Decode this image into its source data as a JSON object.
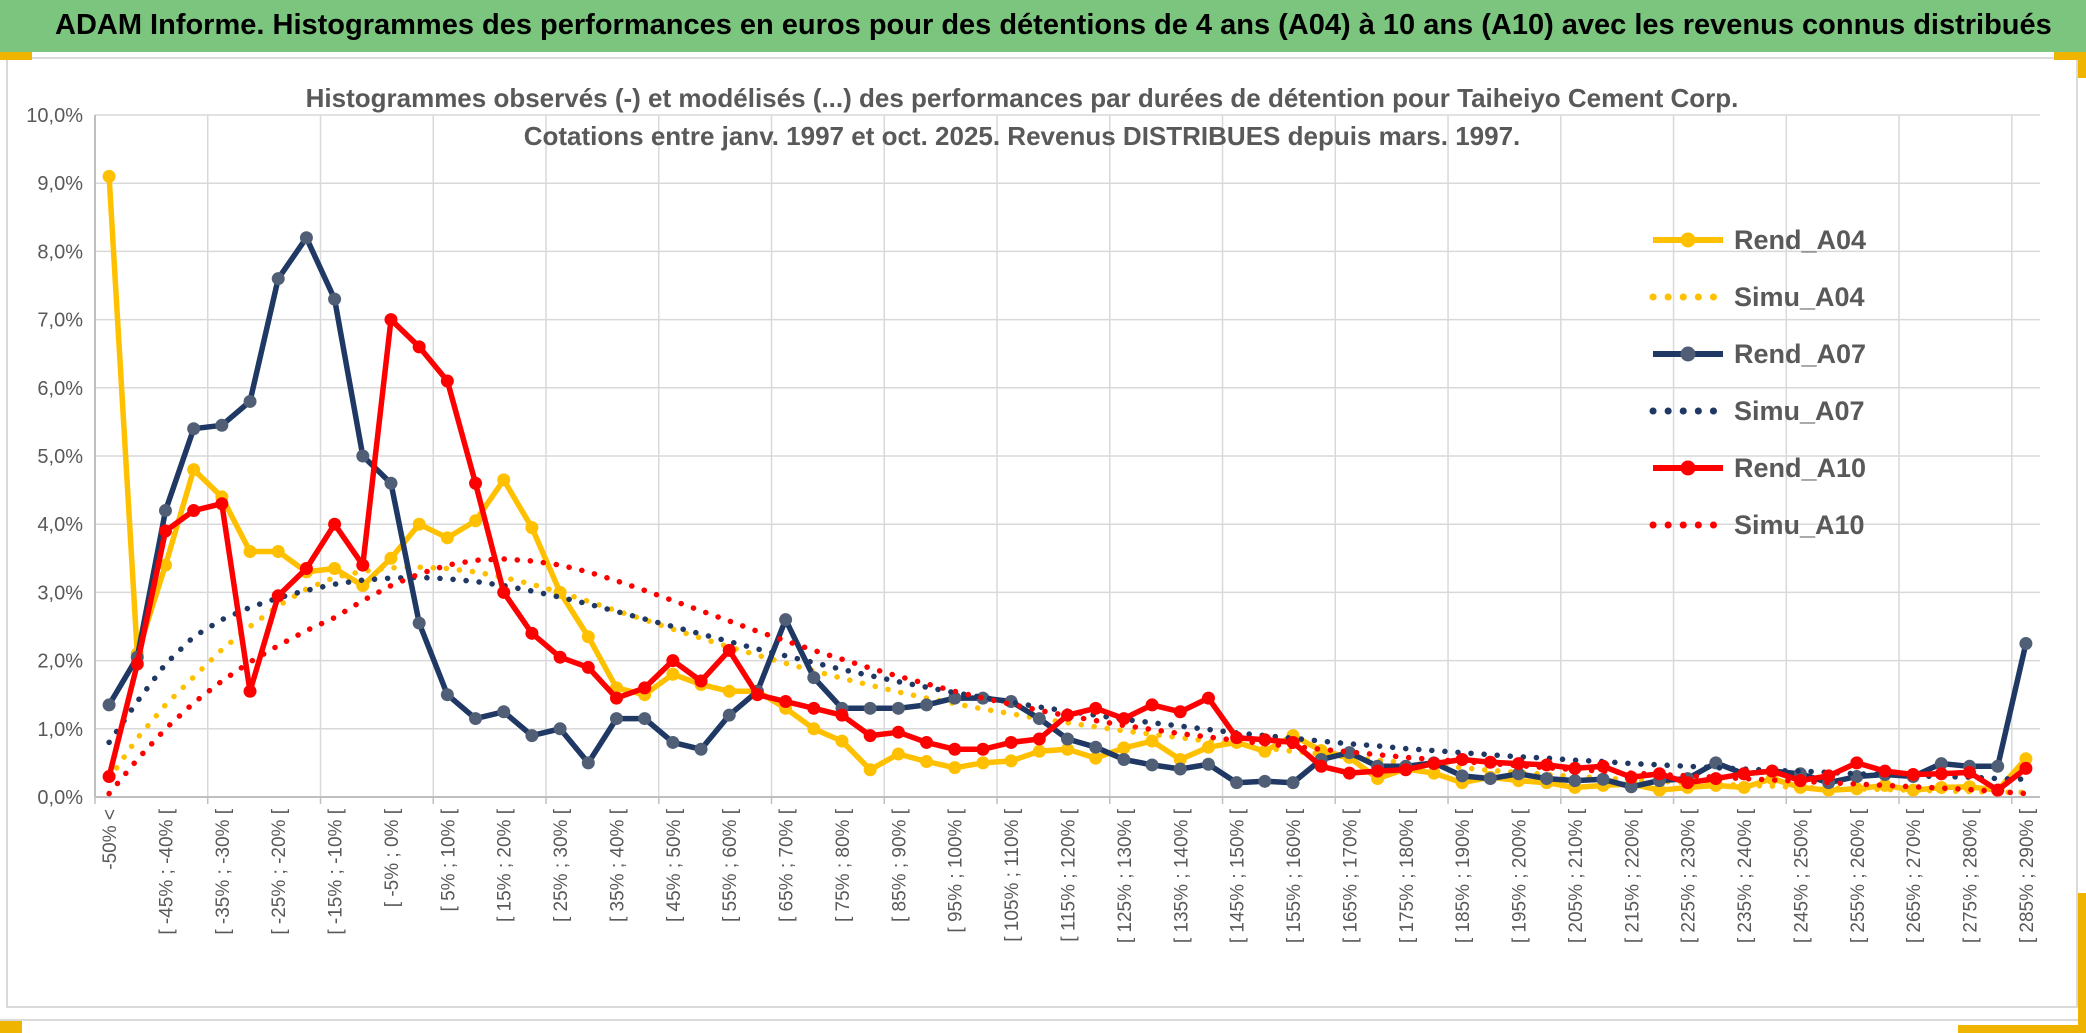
{
  "header": {
    "title": "ADAM Informe. Histogrammes des performances en euros pour des détentions de 4 ans (A04) à 10 ans (A10) avec les revenus connus distribués"
  },
  "chart_data": {
    "type": "line",
    "title_line1": "Histogrammes observés (-) et modélisés (...) des performances par durées de détention pour Taiheiyo Cement Corp.",
    "title_line2": "Cotations entre janv. 1997 et oct. 2025. Revenus DISTRIBUES depuis mars. 1997.",
    "xlabel": "",
    "ylabel": "",
    "ylim": [
      0,
      10
    ],
    "grid": "on",
    "legend_position": "upper-right-inside",
    "y_tick_labels": [
      "0,0%",
      "1,0%",
      "2,0%",
      "3,0%",
      "4,0%",
      "5,0%",
      "6,0%",
      "7,0%",
      "8,0%",
      "9,0%",
      "10,0%"
    ],
    "categories": [
      "-50% <",
      "",
      "[ -45% ; -40% [",
      "",
      "[ -35% ; -30% [",
      "",
      "[ -25% ; -20% [",
      "",
      "[ -15% ; -10% [",
      "",
      "[ -5% ; 0% [",
      "",
      "[ 5% ; 10% [",
      "",
      "[ 15% ; 20% [",
      "",
      "[ 25% ; 30% [",
      "",
      "[ 35% ; 40% [",
      "",
      "[ 45% ; 50% [",
      "",
      "[ 55% ; 60% [",
      "",
      "[ 65% ; 70% [",
      "",
      "[ 75% ; 80% [",
      "",
      "[ 85% ; 90% [",
      "",
      "[ 95% ; 100% [",
      "",
      "[ 105% ; 110% [",
      "",
      "[ 115% ; 120% [",
      "",
      "[ 125% ; 130% [",
      "",
      "[ 135% ; 140% [",
      "",
      "[ 145% ; 150% [",
      "",
      "[ 155% ; 160% [",
      "",
      "[ 165% ; 170% [",
      "",
      "[ 175% ; 180% [",
      "",
      "[ 185% ; 190% [",
      "",
      "[ 195% ; 200% [",
      "",
      "[ 205% ; 210% [",
      "",
      "[ 215% ; 220% [",
      "",
      "[ 225% ; 230% [",
      "",
      "[ 235% ; 240% [",
      "",
      "[ 245% ; 250% [",
      "",
      "[ 255% ; 260% [",
      "",
      "[ 265% ; 270% [",
      "",
      "[ 275% ; 280% [",
      "",
      "[ 285% ; 290% ["
    ],
    "series": [
      {
        "name": "Rend_A04",
        "color": "#FFC000",
        "marker_color": "#FFC000",
        "dotted": false,
        "values": [
          9.1,
          2.1,
          3.4,
          4.8,
          4.4,
          3.6,
          3.6,
          3.3,
          3.35,
          3.1,
          3.5,
          4.0,
          3.8,
          4.05,
          4.65,
          3.95,
          3.0,
          2.35,
          1.6,
          1.5,
          1.8,
          1.65,
          1.55,
          1.55,
          1.3,
          1.0,
          0.82,
          0.4,
          0.63,
          0.52,
          0.43,
          0.5,
          0.53,
          0.67,
          0.7,
          0.57,
          0.72,
          0.82,
          0.55,
          0.73,
          0.8,
          0.67,
          0.9,
          0.68,
          0.58,
          0.27,
          0.41,
          0.35,
          0.21,
          0.29,
          0.24,
          0.21,
          0.14,
          0.17,
          0.19,
          0.1,
          0.14,
          0.17,
          0.14,
          0.27,
          0.14,
          0.1,
          0.12,
          0.17,
          0.1,
          0.14,
          0.15,
          0.1,
          0.56
        ]
      },
      {
        "name": "Simu_A04",
        "color": "#FFC000",
        "dotted": true,
        "values": [
          0.27,
          0.86,
          1.35,
          1.76,
          2.16,
          2.5,
          2.8,
          3.05,
          3.22,
          3.31,
          3.36,
          3.37,
          3.35,
          3.3,
          3.22,
          3.12,
          3.0,
          2.87,
          2.73,
          2.6,
          2.46,
          2.33,
          2.2,
          2.08,
          1.96,
          1.85,
          1.74,
          1.64,
          1.54,
          1.45,
          1.37,
          1.29,
          1.22,
          1.15,
          1.09,
          1.03,
          0.97,
          0.92,
          0.87,
          0.82,
          0.77,
          0.72,
          0.67,
          0.63,
          0.58,
          0.54,
          0.5,
          0.46,
          0.43,
          0.39,
          0.36,
          0.33,
          0.3,
          0.28,
          0.25,
          0.23,
          0.21,
          0.19,
          0.17,
          0.16,
          0.14,
          0.13,
          0.12,
          0.11,
          0.1,
          0.09,
          0.08,
          0.07,
          0.07
        ]
      },
      {
        "name": "Rend_A07",
        "color": "#1F3864",
        "marker_color": "#515F76",
        "dotted": false,
        "values": [
          1.35,
          2.05,
          4.2,
          5.4,
          5.45,
          5.8,
          7.6,
          8.2,
          7.3,
          5.0,
          4.6,
          2.55,
          1.5,
          1.15,
          1.25,
          0.9,
          1.0,
          0.5,
          1.15,
          1.15,
          0.8,
          0.7,
          1.2,
          1.55,
          2.6,
          1.75,
          1.3,
          1.3,
          1.3,
          1.35,
          1.45,
          1.45,
          1.4,
          1.15,
          0.85,
          0.73,
          0.55,
          0.47,
          0.41,
          0.48,
          0.21,
          0.23,
          0.21,
          0.55,
          0.65,
          0.45,
          0.45,
          0.5,
          0.31,
          0.27,
          0.34,
          0.27,
          0.24,
          0.26,
          0.15,
          0.24,
          0.27,
          0.5,
          0.34,
          0.38,
          0.34,
          0.21,
          0.3,
          0.33,
          0.3,
          0.49,
          0.45,
          0.45,
          2.25
        ]
      },
      {
        "name": "Simu_A07",
        "color": "#1F3864",
        "dotted": true,
        "values": [
          0.8,
          1.4,
          1.95,
          2.35,
          2.6,
          2.78,
          2.92,
          3.03,
          3.12,
          3.18,
          3.21,
          3.22,
          3.2,
          3.16,
          3.1,
          3.02,
          2.93,
          2.83,
          2.72,
          2.61,
          2.5,
          2.39,
          2.28,
          2.17,
          2.07,
          1.97,
          1.87,
          1.78,
          1.69,
          1.61,
          1.53,
          1.46,
          1.39,
          1.32,
          1.26,
          1.2,
          1.14,
          1.09,
          1.04,
          0.99,
          0.94,
          0.9,
          0.86,
          0.82,
          0.78,
          0.75,
          0.71,
          0.68,
          0.65,
          0.62,
          0.59,
          0.57,
          0.54,
          0.52,
          0.49,
          0.47,
          0.45,
          0.43,
          0.41,
          0.39,
          0.38,
          0.36,
          0.34,
          0.33,
          0.31,
          0.3,
          0.29,
          0.27,
          0.26
        ]
      },
      {
        "name": "Rend_A10",
        "color": "#FF0000",
        "marker_color": "#FF0000",
        "dotted": false,
        "values": [
          0.3,
          1.95,
          3.9,
          4.2,
          4.3,
          1.55,
          2.95,
          3.35,
          4.0,
          3.4,
          7.0,
          6.6,
          6.1,
          4.6,
          3.0,
          2.4,
          2.05,
          1.9,
          1.45,
          1.6,
          2.0,
          1.7,
          2.15,
          1.5,
          1.4,
          1.3,
          1.2,
          0.9,
          0.95,
          0.8,
          0.7,
          0.7,
          0.8,
          0.85,
          1.2,
          1.3,
          1.15,
          1.35,
          1.25,
          1.45,
          0.87,
          0.84,
          0.8,
          0.45,
          0.35,
          0.38,
          0.4,
          0.49,
          0.55,
          0.51,
          0.49,
          0.47,
          0.42,
          0.45,
          0.29,
          0.34,
          0.21,
          0.27,
          0.34,
          0.38,
          0.24,
          0.31,
          0.5,
          0.38,
          0.33,
          0.34,
          0.36,
          0.1,
          0.42
        ]
      },
      {
        "name": "Simu_A10",
        "color": "#FF0000",
        "dotted": true,
        "values": [
          0.05,
          0.55,
          1.0,
          1.38,
          1.7,
          1.98,
          2.22,
          2.44,
          2.63,
          2.88,
          3.1,
          3.27,
          3.4,
          3.47,
          3.49,
          3.46,
          3.4,
          3.3,
          3.17,
          3.03,
          2.88,
          2.73,
          2.58,
          2.43,
          2.29,
          2.15,
          2.02,
          1.89,
          1.77,
          1.66,
          1.55,
          1.45,
          1.36,
          1.27,
          1.19,
          1.12,
          1.05,
          0.99,
          0.93,
          0.88,
          0.83,
          0.78,
          0.74,
          0.7,
          0.66,
          0.62,
          0.58,
          0.55,
          0.52,
          0.49,
          0.46,
          0.43,
          0.4,
          0.38,
          0.35,
          0.33,
          0.31,
          0.29,
          0.27,
          0.25,
          0.23,
          0.21,
          0.19,
          0.17,
          0.15,
          0.13,
          0.11,
          0.08,
          0.05
        ]
      }
    ],
    "colors": {
      "grid": "#D9D9D9",
      "axis": "#BFBFBF",
      "text": "#595959",
      "header_green": "#7CC57E",
      "accent_gold": "#EFB400"
    }
  }
}
